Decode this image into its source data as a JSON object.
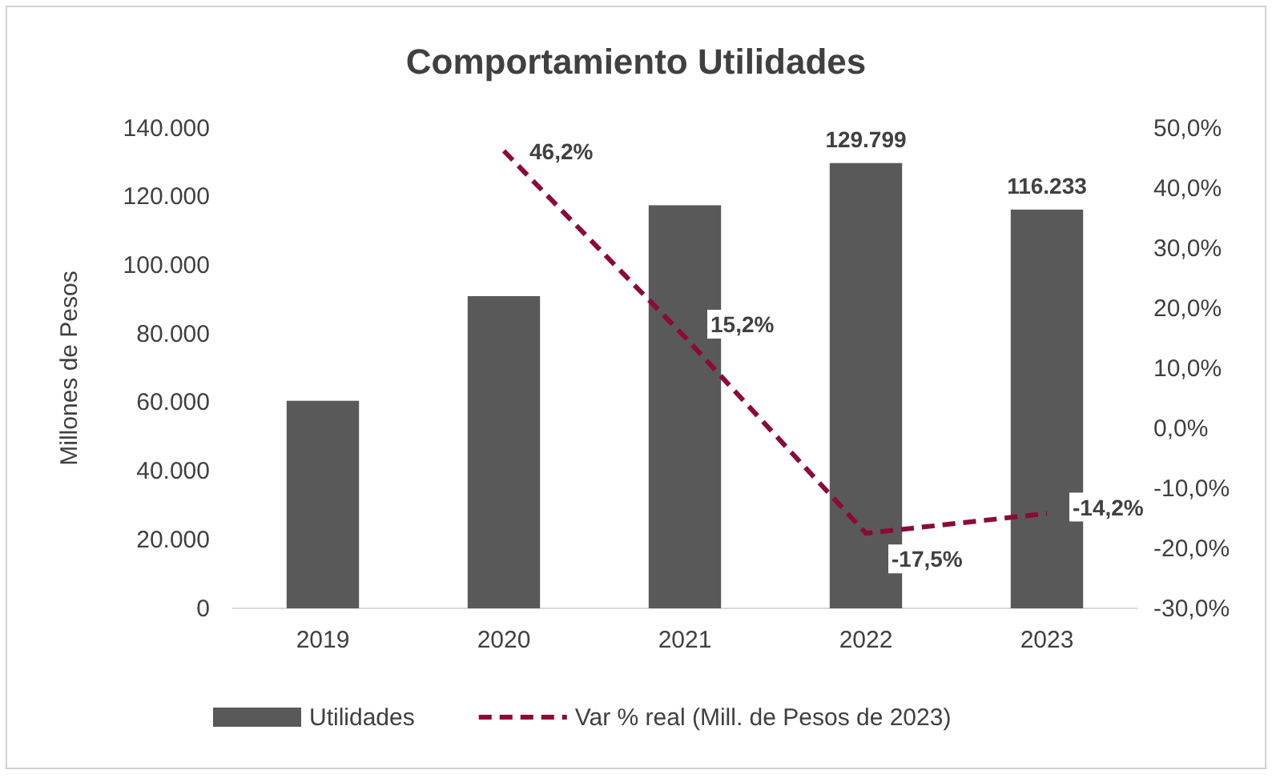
{
  "chart_data": {
    "type": "bar",
    "title": "Comportamiento Utilidades",
    "ylabel": "Millones de Pesos",
    "categories": [
      "2019",
      "2020",
      "2021",
      "2022",
      "2023"
    ],
    "series": [
      {
        "name": "Utilidades",
        "color": "#595959",
        "values": [
          60500,
          91000,
          117500,
          129799,
          116233
        ],
        "value_labels": [
          null,
          null,
          null,
          "129.799",
          "116.233"
        ]
      },
      {
        "name": "Var % real (Mill. de Pesos de 2023)",
        "type": "line",
        "axis": "y2",
        "color": "#8b0a3a",
        "line_style": "dashed",
        "marker": "none",
        "values": [
          null,
          46.2,
          15.2,
          -17.5,
          -14.2
        ],
        "value_labels": [
          null,
          "46,2%",
          "15,2%",
          "-17,5%",
          "-14,2%"
        ]
      }
    ],
    "ylim": [
      0,
      140000
    ],
    "yticks": [
      {
        "value": 0,
        "label": "0"
      },
      {
        "value": 20000,
        "label": "20.000"
      },
      {
        "value": 40000,
        "label": "40.000"
      },
      {
        "value": 60000,
        "label": "60.000"
      },
      {
        "value": 80000,
        "label": "80.000"
      },
      {
        "value": 100000,
        "label": "100.000"
      },
      {
        "value": 120000,
        "label": "120.000"
      },
      {
        "value": 140000,
        "label": "140.000"
      }
    ],
    "y2lim": [
      -30,
      50
    ],
    "y2ticks": [
      {
        "value": -30,
        "label": "-30,0%"
      },
      {
        "value": -20,
        "label": "-20,0%"
      },
      {
        "value": -10,
        "label": "-10,0%"
      },
      {
        "value": 0,
        "label": "0,0%"
      },
      {
        "value": 10,
        "label": "10,0%"
      },
      {
        "value": 20,
        "label": "20,0%"
      },
      {
        "value": 30,
        "label": "30,0%"
      },
      {
        "value": 40,
        "label": "40,0%"
      },
      {
        "value": 50,
        "label": "50,0%"
      }
    ],
    "legend": "bottom"
  }
}
